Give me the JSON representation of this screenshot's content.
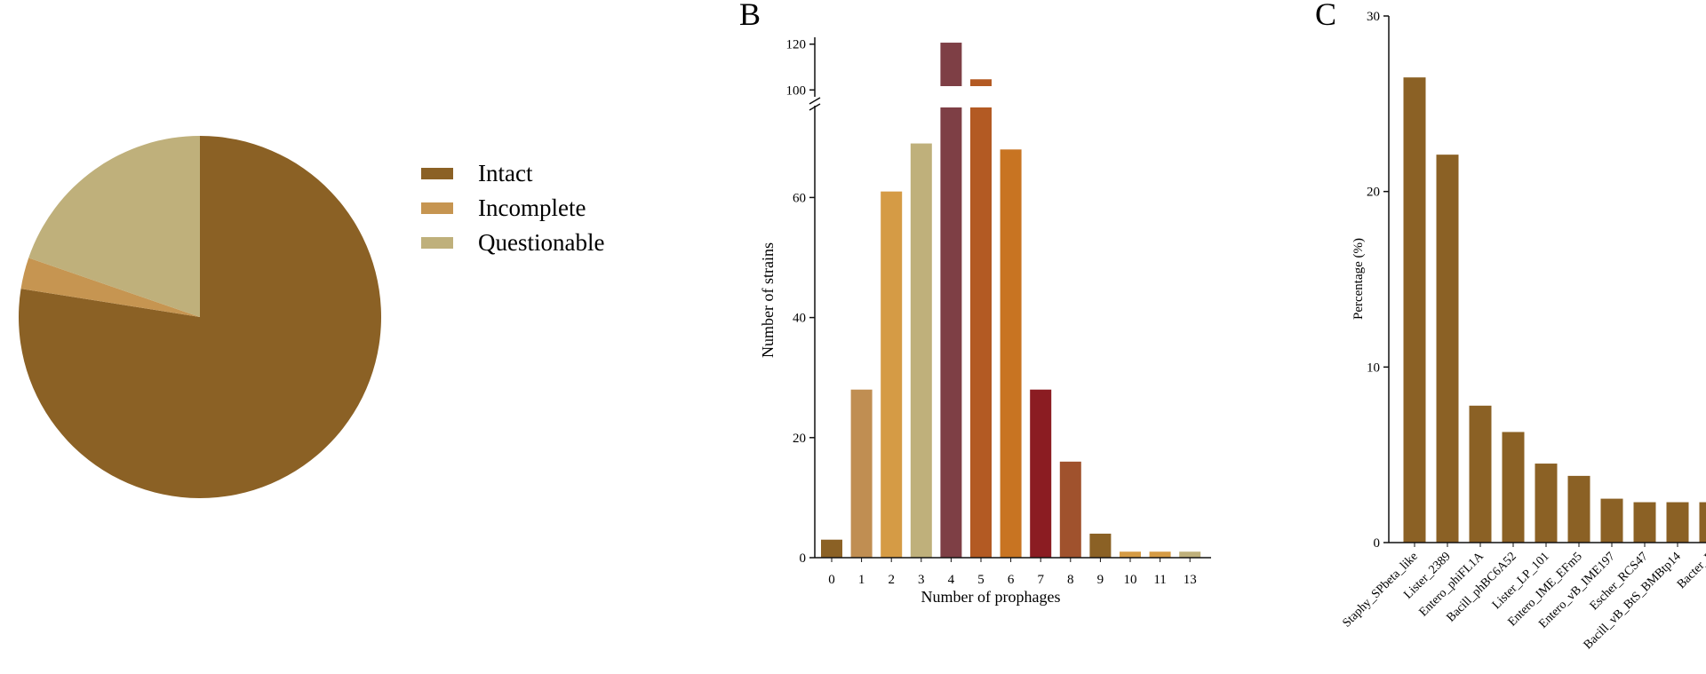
{
  "colors": {
    "intact": "#8B6125",
    "incomplete": "#C69551",
    "questionable": "#BFB07B",
    "axis": "#111111"
  },
  "chart_data": [
    {
      "type": "pie",
      "title": "",
      "slices": [
        {
          "name": "Intact",
          "value": 77.5,
          "color": "#8B6125"
        },
        {
          "name": "Incomplete",
          "value": 2.8,
          "color": "#C69551"
        },
        {
          "name": "Questionable",
          "value": 19.7,
          "color": "#BFB07B"
        }
      ],
      "legend": [
        "Intact",
        "Incomplete",
        "Questionable"
      ],
      "legend_position": "right"
    },
    {
      "type": "bar",
      "panel": "B",
      "title": "",
      "xlabel": "Number of prophages",
      "ylabel": "Number of strains",
      "categories": [
        "0",
        "1",
        "2",
        "3",
        "4",
        "5",
        "6",
        "7",
        "8",
        "9",
        "10",
        "11",
        "13"
      ],
      "values": [
        3,
        28,
        61,
        69,
        116,
        100,
        68,
        28,
        16,
        4,
        1,
        1,
        1
      ],
      "colors": [
        "#8B6125",
        "#C08E52",
        "#D59B45",
        "#BFB07B",
        "#7E3F45",
        "#B35A23",
        "#C87422",
        "#8B1C22",
        "#A0522D",
        "#8B6125",
        "#D59B45",
        "#D59B45",
        "#BFB07B"
      ],
      "y_break": [
        75,
        97
      ],
      "ylim_lower": [
        0,
        75
      ],
      "ylim_upper": [
        97,
        123
      ],
      "yticks_lower": [
        "0",
        "20",
        "40",
        "60"
      ],
      "yticks_upper": [
        "100",
        "120"
      ],
      "grid": false
    },
    {
      "type": "bar",
      "panel": "C",
      "title": "",
      "xlabel": "",
      "ylabel": "Percentage (%)",
      "categories": [
        "Staphy_SPbeta_like",
        "Lister_2389",
        "Entero_phiFL1A",
        "Bacill_phBC6A52",
        "Lister_LP_101",
        "Entero_IME_EFm5",
        "Entero_vB_IME197",
        "Escher_RCS47",
        "Bacill_vB_BtS_BMBtp14",
        "Bacter_F"
      ],
      "values": [
        26.5,
        22.1,
        7.8,
        6.3,
        4.5,
        3.8,
        2.5,
        2.3,
        2.3,
        2.3
      ],
      "color": "#8B6125",
      "ylim": [
        0,
        30
      ],
      "yticks": [
        "0",
        "10",
        "20",
        "30"
      ],
      "grid": false
    }
  ],
  "panels": {
    "b": "B",
    "c": "C"
  }
}
